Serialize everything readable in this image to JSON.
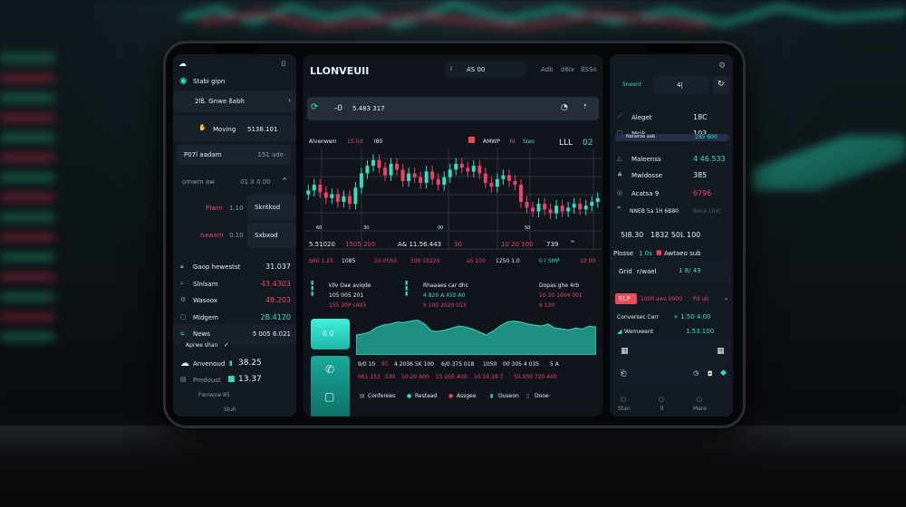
{
  "colors": {
    "accent": "#2fe0c0",
    "down": "#f0406a",
    "panel": "#141a22",
    "card": "#1c232d"
  },
  "left": {
    "header": {
      "menu_icon": "cloud-icon",
      "title": "Stabi gipn"
    },
    "items": [
      {
        "label": "2lß. Gnwe ßabh"
      },
      {
        "label": "Moving",
        "value": "5138.101"
      },
      {
        "label": "P07l aadam",
        "value": "151 ade"
      },
      {
        "label": "omwm aw",
        "value": "01 X 0.00"
      }
    ],
    "orders": [
      {
        "label": "Plwm",
        "value": "1.10",
        "button": "Skntkod"
      },
      {
        "label": "nawam",
        "value": "0.10",
        "button": "Sxbxod"
      }
    ],
    "stats": [
      {
        "icon": "lock-icon",
        "label": "Gaop hewestst",
        "value": "31.037",
        "tone": "w"
      },
      {
        "icon": "search-icon",
        "label": "Slnlsam",
        "value": "43.4303",
        "tone": "r"
      },
      {
        "icon": "settings-icon",
        "label": "Wasoox",
        "value": "48.203",
        "tone": "r"
      },
      {
        "icon": "square-icon",
        "label": "Midgem",
        "value": "2B.4120",
        "tone": "g"
      },
      {
        "icon": "home-icon",
        "label": "News",
        "value": "5 005 6.021",
        "tone": "w"
      }
    ],
    "section_label": "Aprwe shan",
    "accounts": [
      {
        "label": "Anvenoud",
        "value": "38.25"
      },
      {
        "label": "Predoust",
        "value": "13.37"
      }
    ],
    "footer_item": "Fwnwsw 85",
    "footer_tab": "Stuh"
  },
  "center": {
    "title": "LLONVEUII",
    "top_tabs": [
      "AS 00",
      "Adb",
      "d6lx",
      "ßSSo"
    ],
    "ticker": {
      "label": "-0",
      "value": "5.483 317"
    },
    "chart_header": [
      "Alvenwwn",
      "15.5d",
      "l80",
      "AMWP",
      "hi",
      "Siao",
      "LLL",
      "02"
    ],
    "x_ticks": [
      "60",
      "30",
      "00",
      "50"
    ],
    "candles": [
      52,
      58,
      50,
      44,
      48,
      40,
      46,
      38,
      55,
      70,
      78,
      84,
      76,
      68,
      80,
      74,
      62,
      70,
      66,
      60,
      72,
      64,
      58,
      66,
      74,
      80,
      76,
      72,
      78,
      70,
      60,
      56,
      64,
      68,
      62,
      58,
      40,
      34,
      30,
      38,
      32,
      28,
      36,
      30,
      34,
      38,
      32,
      36,
      40,
      44
    ],
    "stats_row1": [
      {
        "t": "5.51020",
        "c": "w"
      },
      {
        "t": "1505 205",
        "c": "r"
      },
      {
        "t": "A& 11.56.443",
        "c": "w"
      },
      {
        "t": "30",
        "c": "r"
      },
      {
        "t": "10 20 100",
        "c": "r"
      },
      {
        "t": "739",
        "c": "w"
      }
    ],
    "stats_row2": [
      {
        "t": "b60 1.23",
        "c": "r"
      },
      {
        "t": "1085",
        "c": "w"
      },
      {
        "t": "50.0550",
        "c": "r"
      },
      {
        "t": "500 10220",
        "c": "r"
      },
      {
        "t": "a5 120",
        "c": "r"
      },
      {
        "t": "1250 1.0",
        "c": "w"
      },
      {
        "t": "0 ( 5MP",
        "c": "g"
      },
      {
        "t": "10 00",
        "c": "r"
      }
    ],
    "info_blocks": [
      {
        "title": "kllv Oae aviqde",
        "line1": "105 005 201",
        "line2": "155 20P c405"
      },
      {
        "title": "Rhaaaes car dhc",
        "line1": "4 820 A.450 A0",
        "line2": "5 100 2020 013"
      },
      {
        "title": "Dopas ghe 4rb",
        "line1": "10 30 1004 001",
        "line2": "6 130"
      }
    ],
    "toggle_label": "0 0",
    "area": [
      40,
      42,
      46,
      55,
      60,
      62,
      66,
      65,
      68,
      70,
      62,
      48,
      47,
      50,
      54,
      58,
      56,
      52,
      46,
      40,
      48,
      58,
      66,
      68,
      66,
      62,
      60,
      58,
      62,
      54,
      52,
      50,
      54,
      52,
      58,
      56
    ],
    "metrics_row1": [
      "9/0 10",
      "95",
      "4.2036 5K 100",
      "6/0 375 018",
      "1050",
      "00 305 4 035",
      "5 A"
    ],
    "metrics_row2": [
      "061.153",
      "030",
      "10.20 A00",
      "15 200 A00",
      "10 10.18 7",
      "50.050 720 A00"
    ],
    "legend": [
      "Conferees",
      "Restaad",
      "Assgee",
      "Ouseon",
      "Dooe"
    ]
  },
  "right": {
    "search": {
      "label": "Sneent",
      "value": "4|"
    },
    "items": [
      {
        "label": "Aleget",
        "value": "18C"
      },
      {
        "label": "Msik",
        "value": "103"
      },
      {
        "label": "Maleenss",
        "value": "4 46.533"
      },
      {
        "label": "Mwldosse",
        "value": "385"
      },
      {
        "label": "Acatsa 9",
        "value": "6796"
      }
    ],
    "highlight": {
      "label": "Naneroe aab",
      "value": "285 800"
    },
    "trend": "NNEB 5a 1H 6B80",
    "trend_note": "Beca 1bxt",
    "big_numbers": "5I8.30   1832 50L 100",
    "legend": {
      "a": "Plosse",
      "b": "1 0s",
      "c": "Awtaeo sub"
    },
    "grid": {
      "label": "Grid",
      "sub": "r/wael",
      "value": "1 8/ 49"
    },
    "alert": {
      "badge": "ELP",
      "text": "1000 aws 0900",
      "tag": "Pd ub"
    },
    "rows": [
      {
        "label": "Conversec Cerr",
        "value": "+ 1.50 4.00"
      },
      {
        "label": "Wemxeent",
        "value": "1.53.100"
      }
    ],
    "tabs": [
      "Stan",
      "II",
      "Mare"
    ]
  }
}
